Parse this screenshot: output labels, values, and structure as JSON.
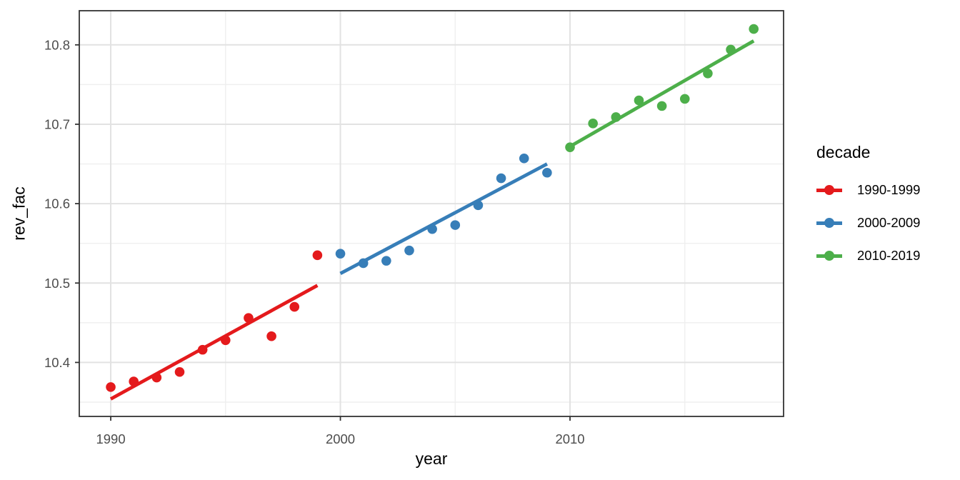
{
  "chart_data": {
    "type": "scatter",
    "title": "",
    "xlabel": "year",
    "ylabel": "rev_fac",
    "legend_title": "decade",
    "legend_position": "right",
    "grid": true,
    "x_range": [
      1988.63,
      2019.3
    ],
    "y_range": [
      10.332,
      10.843
    ],
    "x_ticks": [
      1990,
      2000,
      2010
    ],
    "x_minor_ticks": [
      1995,
      2005,
      2015
    ],
    "y_ticks": [
      10.4,
      10.5,
      10.6,
      10.7,
      10.8
    ],
    "y_minor_ticks": [
      10.35,
      10.45,
      10.55,
      10.65,
      10.75
    ],
    "colors": {
      "grid_major": "#e2e2e2",
      "grid_minor": "#efefef",
      "panel_border": "#333333",
      "tick_mark": "#333333",
      "tick_label": "#4d4d4d"
    },
    "series": [
      {
        "name": "1990-1999",
        "color": "#e41a1c",
        "x": [
          1990,
          1991,
          1992,
          1993,
          1994,
          1995,
          1996,
          1997,
          1998,
          1999
        ],
        "y": [
          10.369,
          10.376,
          10.381,
          10.388,
          10.416,
          10.428,
          10.456,
          10.433,
          10.47,
          10.535
        ],
        "trend": {
          "x": [
            1990,
            1999
          ],
          "y": [
            10.354,
            10.497
          ]
        }
      },
      {
        "name": "2000-2009",
        "color": "#377eb8",
        "x": [
          2000,
          2001,
          2002,
          2003,
          2004,
          2005,
          2006,
          2007,
          2008,
          2009
        ],
        "y": [
          10.537,
          10.525,
          10.528,
          10.541,
          10.568,
          10.573,
          10.598,
          10.632,
          10.657,
          10.639
        ],
        "trend": {
          "x": [
            2000,
            2009
          ],
          "y": [
            10.512,
            10.65
          ]
        }
      },
      {
        "name": "2010-2019",
        "color": "#4daf4a",
        "x": [
          2010,
          2011,
          2012,
          2013,
          2014,
          2015,
          2016,
          2017,
          2018
        ],
        "y": [
          10.671,
          10.701,
          10.709,
          10.73,
          10.723,
          10.732,
          10.764,
          10.794,
          10.82
        ],
        "trend": {
          "x": [
            2010,
            2018
          ],
          "y": [
            10.672,
            10.805
          ]
        }
      }
    ]
  }
}
